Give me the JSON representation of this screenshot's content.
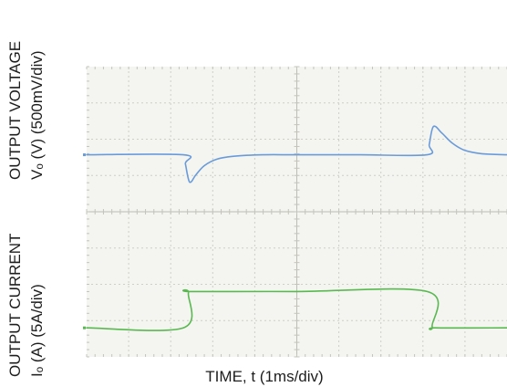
{
  "chart_data": {
    "type": "line",
    "xlabel": "TIME, t (1ms/div)",
    "x_divisions": 10,
    "y_divisions": 8,
    "colors": {
      "voltage": "#6a9bd9",
      "current": "#59b84f",
      "grid": "#cfcfc8",
      "background": "#f4f4f1"
    },
    "panels": [
      {
        "name": "voltage",
        "label_title": "OUTPUT VOLTAGE",
        "label_units": "Vₒ (V) (500mV/div)",
        "scale": "500mV/div",
        "color": "#6a9bd9",
        "x": [
          0,
          2.3,
          2.35,
          2.45,
          2.6,
          2.8,
          3.1,
          3.5,
          4.2,
          5.0,
          6.5,
          8.1,
          8.15,
          8.25,
          8.45,
          8.7,
          9.0,
          9.4,
          10
        ],
        "y": [
          0,
          0,
          -0.25,
          -0.75,
          -0.55,
          -0.3,
          -0.12,
          -0.04,
          0,
          0,
          0,
          0,
          0.28,
          0.78,
          0.6,
          0.32,
          0.12,
          0.03,
          0
        ]
      },
      {
        "name": "current",
        "label_title": "OUTPUT CURRENT",
        "label_units": "Iₒ (A) (5A/div)",
        "scale": "5A/div",
        "color": "#59b84f",
        "x": [
          0,
          2.3,
          2.42,
          2.5,
          5.0,
          8.1,
          8.22,
          8.3,
          10
        ],
        "y": [
          0,
          0,
          0.96,
          1.0,
          1.0,
          1.0,
          0.04,
          0,
          0
        ]
      }
    ]
  }
}
